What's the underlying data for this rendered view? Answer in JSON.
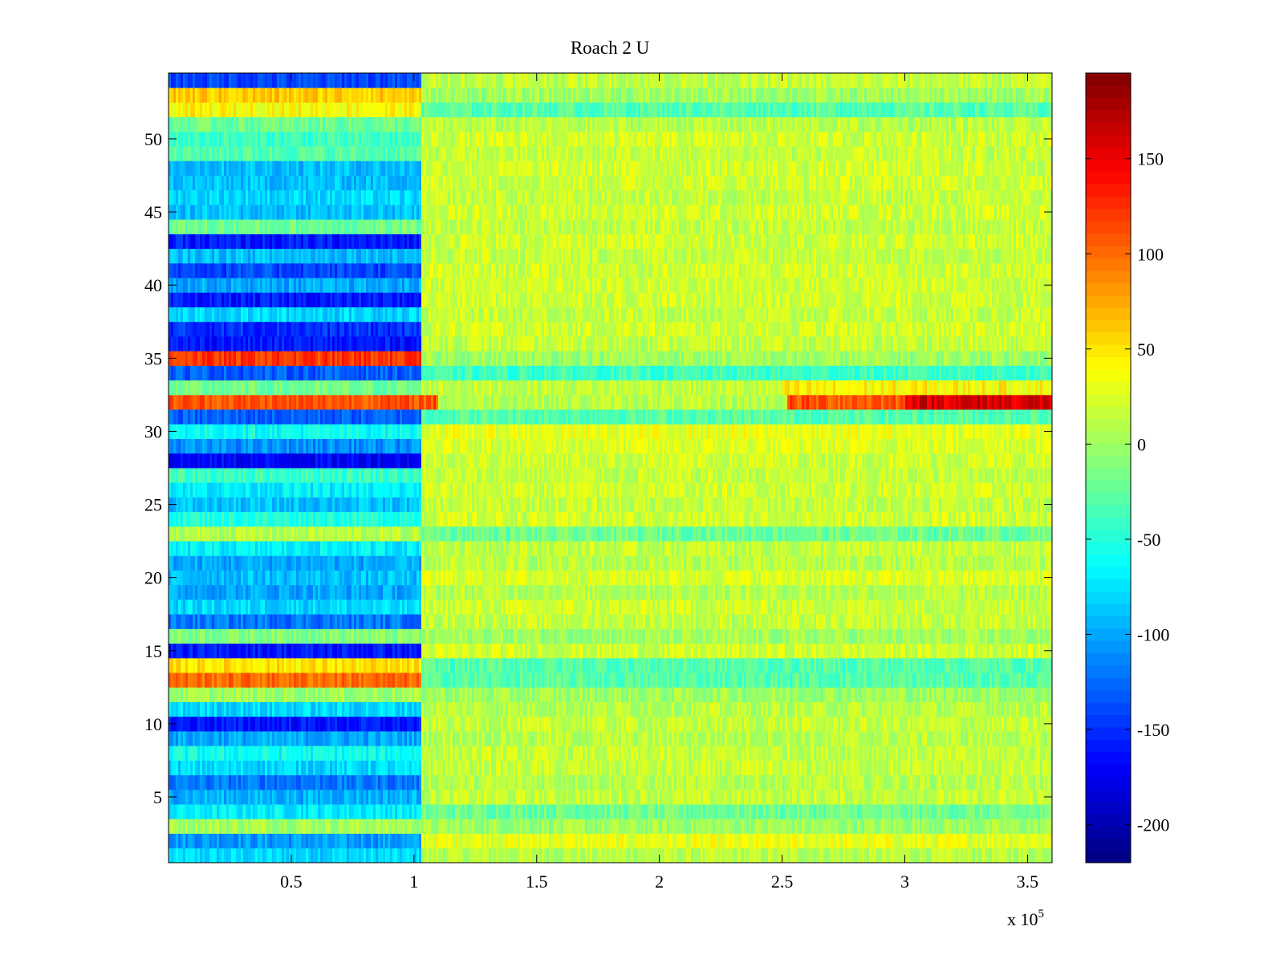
{
  "chart_data": {
    "type": "heatmap",
    "title": "Roach 2 U",
    "xlabel": "",
    "ylabel": "",
    "x_range": [
      1,
      360000
    ],
    "y_range": [
      1,
      54
    ],
    "rows": 54,
    "xlim": [
      0,
      360000
    ],
    "ylim": [
      0.5,
      54.5
    ],
    "x_ticks": [
      50000,
      100000,
      150000,
      200000,
      250000,
      300000,
      350000
    ],
    "x_tick_labels": [
      "0.5",
      "1",
      "1.5",
      "2",
      "2.5",
      "3",
      "3.5"
    ],
    "x_multiplier_label": "x 10",
    "x_multiplier_exponent": "5",
    "y_ticks": [
      5,
      10,
      15,
      20,
      25,
      30,
      35,
      40,
      45,
      50
    ],
    "y_tick_labels": [
      "5",
      "10",
      "15",
      "20",
      "25",
      "30",
      "35",
      "40",
      "45",
      "50"
    ],
    "segment_boundary_x": 103000,
    "colorbar": {
      "colormap": "jet",
      "clim": [
        -220,
        195
      ],
      "ticks": [
        -200,
        -150,
        -100,
        -50,
        0,
        50,
        100,
        150
      ],
      "tick_labels": [
        "-200",
        "-150",
        "-100",
        "-50",
        "0",
        "50",
        "100",
        "150"
      ]
    },
    "row_levels_first_segment": [
      -80,
      -105,
      5,
      -70,
      -95,
      -120,
      -80,
      -60,
      -100,
      -160,
      -80,
      0,
      100,
      50,
      -160,
      -10,
      -120,
      -80,
      -100,
      -90,
      -100,
      -70,
      10,
      -50,
      -90,
      -70,
      -40,
      -170,
      -110,
      -60,
      -130,
      110,
      -20,
      -130,
      120,
      -160,
      -150,
      -80,
      -160,
      -100,
      -140,
      -90,
      -160,
      -20,
      -90,
      -80,
      -90,
      -90,
      -30,
      -40,
      -20,
      40,
      60,
      -140
    ],
    "row_levels_second_segment": [
      10,
      30,
      0,
      -20,
      15,
      10,
      15,
      15,
      10,
      15,
      10,
      0,
      -30,
      -30,
      20,
      0,
      15,
      20,
      10,
      25,
      10,
      15,
      -20,
      20,
      15,
      20,
      15,
      20,
      25,
      30,
      -30,
      10,
      15,
      -40,
      0,
      15,
      20,
      15,
      20,
      20,
      20,
      15,
      20,
      15,
      20,
      15,
      20,
      20,
      15,
      20,
      10,
      -30,
      0,
      15
    ],
    "highlight_segments": [
      {
        "row": 32,
        "x_start": 252000,
        "x_end": 300000,
        "level": 110
      },
      {
        "row": 32,
        "x_start": 300000,
        "x_end": 360000,
        "level": 160
      },
      {
        "row": 32,
        "x_start": 103000,
        "x_end": 110000,
        "level": 110
      },
      {
        "row": 33,
        "x_start": 250000,
        "x_end": 360000,
        "level": 40
      }
    ]
  }
}
